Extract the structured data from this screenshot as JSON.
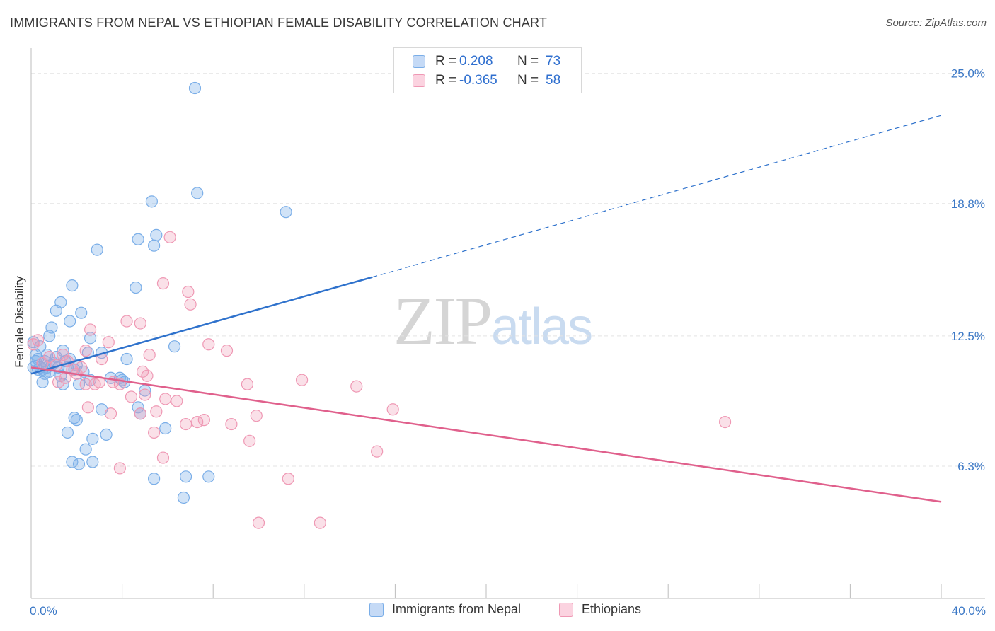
{
  "title": "IMMIGRANTS FROM NEPAL VS ETHIOPIAN FEMALE DISABILITY CORRELATION CHART",
  "source": "Source: ZipAtlas.com",
  "watermark": {
    "zip": "ZIP",
    "atlas": "atlas"
  },
  "colors": {
    "blue": "#7aaee8",
    "blue_fill": "rgba(122,174,232,0.35)",
    "blue_line": "#2f72cc",
    "pink": "#ef98b4",
    "pink_fill": "rgba(239,152,180,0.3)",
    "pink_line": "#e0608c",
    "axis_label": "#3b78c6",
    "grid": "#e3e3e3"
  },
  "legend": {
    "series1": {
      "r_label": "R =",
      "r_value": "0.208",
      "n_label": "N =",
      "n_value": "73"
    },
    "series2": {
      "r_label": "R =",
      "r_value": "-0.365",
      "n_label": "N =",
      "n_value": "58"
    }
  },
  "bottom_legend": [
    "Immigrants from Nepal",
    "Ethiopians"
  ],
  "chart_data": {
    "type": "scatter",
    "title": "IMMIGRANTS FROM NEPAL VS ETHIOPIAN FEMALE DISABILITY CORRELATION CHART",
    "xlabel": "",
    "ylabel": "Female Disability",
    "xlim": [
      0,
      40
    ],
    "ylim": [
      0,
      25.9
    ],
    "x_tick_labels": [
      "0.0%",
      "40.0%"
    ],
    "y_ticks": [
      6.3,
      12.5,
      18.8,
      25.0
    ],
    "y_tick_labels": [
      "6.3%",
      "12.5%",
      "18.8%",
      "25.0%"
    ],
    "grid": "horizontal dashed",
    "legend_position": "top-center",
    "series": [
      {
        "name": "Immigrants from Nepal",
        "color": "#7aaee8",
        "trend": {
          "x": [
            0,
            15
          ],
          "y": [
            10.7,
            15.3
          ],
          "dashed_extension": {
            "x": [
              15,
              40
            ],
            "y": [
              15.3,
              23.0
            ]
          }
        },
        "points": [
          [
            7.2,
            24.3
          ],
          [
            7.3,
            19.3
          ],
          [
            11.2,
            18.4
          ],
          [
            5.3,
            18.9
          ],
          [
            5.5,
            17.3
          ],
          [
            4.7,
            17.1
          ],
          [
            5.4,
            16.8
          ],
          [
            2.9,
            16.6
          ],
          [
            1.8,
            14.9
          ],
          [
            4.6,
            14.8
          ],
          [
            1.3,
            14.1
          ],
          [
            1.1,
            13.7
          ],
          [
            2.2,
            13.6
          ],
          [
            1.7,
            13.2
          ],
          [
            0.9,
            12.9
          ],
          [
            2.6,
            12.4
          ],
          [
            0.8,
            12.5
          ],
          [
            6.3,
            12.0
          ],
          [
            1.4,
            11.8
          ],
          [
            2.5,
            11.7
          ],
          [
            3.1,
            11.7
          ],
          [
            0.2,
            11.6
          ],
          [
            0.3,
            11.4
          ],
          [
            0.6,
            11.3
          ],
          [
            1.0,
            11.2
          ],
          [
            1.5,
            11.3
          ],
          [
            4.2,
            11.4
          ],
          [
            0.4,
            11.0
          ],
          [
            0.7,
            11.0
          ],
          [
            0.9,
            11.1
          ],
          [
            1.2,
            11.0
          ],
          [
            2.0,
            11.1
          ],
          [
            0.5,
            10.9
          ],
          [
            0.8,
            10.8
          ],
          [
            1.6,
            11.0
          ],
          [
            2.3,
            10.8
          ],
          [
            0.3,
            10.9
          ],
          [
            1.9,
            10.9
          ],
          [
            0.6,
            10.7
          ],
          [
            0.1,
            11.0
          ],
          [
            1.3,
            10.6
          ],
          [
            3.5,
            10.5
          ],
          [
            3.9,
            10.5
          ],
          [
            4.0,
            10.4
          ],
          [
            1.4,
            10.2
          ],
          [
            2.1,
            10.2
          ],
          [
            0.5,
            10.3
          ],
          [
            4.1,
            10.3
          ],
          [
            2.6,
            10.4
          ],
          [
            5.0,
            9.9
          ],
          [
            4.7,
            9.1
          ],
          [
            3.1,
            9.0
          ],
          [
            4.8,
            8.8
          ],
          [
            1.9,
            8.6
          ],
          [
            2.0,
            8.5
          ],
          [
            5.9,
            8.1
          ],
          [
            1.6,
            7.9
          ],
          [
            3.3,
            7.8
          ],
          [
            2.7,
            7.6
          ],
          [
            2.4,
            7.1
          ],
          [
            1.8,
            6.5
          ],
          [
            2.1,
            6.4
          ],
          [
            2.7,
            6.5
          ],
          [
            5.4,
            5.7
          ],
          [
            6.8,
            5.8
          ],
          [
            7.8,
            5.8
          ],
          [
            6.7,
            4.8
          ],
          [
            0.1,
            12.2
          ],
          [
            0.4,
            12.0
          ],
          [
            1.1,
            11.5
          ],
          [
            0.7,
            11.6
          ],
          [
            1.7,
            11.4
          ],
          [
            0.2,
            11.3
          ]
        ]
      },
      {
        "name": "Ethiopians",
        "color": "#ef98b4",
        "trend": {
          "x": [
            0,
            40
          ],
          "y": [
            11.0,
            4.6
          ]
        },
        "points": [
          [
            6.1,
            17.2
          ],
          [
            5.8,
            15.0
          ],
          [
            6.9,
            14.6
          ],
          [
            7.0,
            14.0
          ],
          [
            4.2,
            13.2
          ],
          [
            4.8,
            13.1
          ],
          [
            2.6,
            12.8
          ],
          [
            3.4,
            12.2
          ],
          [
            7.8,
            12.1
          ],
          [
            8.6,
            11.8
          ],
          [
            2.4,
            11.8
          ],
          [
            5.2,
            11.6
          ],
          [
            1.4,
            11.6
          ],
          [
            3.1,
            11.4
          ],
          [
            0.3,
            12.3
          ],
          [
            1.1,
            11.1
          ],
          [
            0.5,
            11.2
          ],
          [
            2.2,
            11.0
          ],
          [
            1.8,
            10.9
          ],
          [
            4.9,
            10.8
          ],
          [
            5.1,
            10.6
          ],
          [
            2.0,
            10.7
          ],
          [
            1.5,
            10.5
          ],
          [
            3.0,
            10.3
          ],
          [
            3.6,
            10.3
          ],
          [
            2.8,
            10.2
          ],
          [
            3.9,
            10.2
          ],
          [
            1.2,
            10.3
          ],
          [
            2.4,
            10.2
          ],
          [
            11.9,
            10.4
          ],
          [
            9.5,
            10.2
          ],
          [
            14.3,
            10.1
          ],
          [
            5.0,
            9.7
          ],
          [
            5.9,
            9.5
          ],
          [
            4.4,
            9.6
          ],
          [
            6.4,
            9.4
          ],
          [
            2.5,
            9.1
          ],
          [
            15.9,
            9.0
          ],
          [
            5.5,
            8.9
          ],
          [
            3.5,
            8.8
          ],
          [
            4.8,
            8.8
          ],
          [
            9.9,
            8.7
          ],
          [
            7.6,
            8.5
          ],
          [
            7.3,
            8.4
          ],
          [
            6.8,
            8.3
          ],
          [
            8.8,
            8.3
          ],
          [
            30.5,
            8.4
          ],
          [
            5.4,
            7.9
          ],
          [
            9.6,
            7.5
          ],
          [
            15.2,
            7.0
          ],
          [
            5.8,
            6.7
          ],
          [
            3.9,
            6.2
          ],
          [
            11.3,
            5.7
          ],
          [
            10.0,
            3.6
          ],
          [
            12.7,
            3.6
          ],
          [
            1.6,
            11.3
          ],
          [
            0.8,
            11.5
          ],
          [
            0.1,
            12.1
          ]
        ]
      }
    ]
  }
}
